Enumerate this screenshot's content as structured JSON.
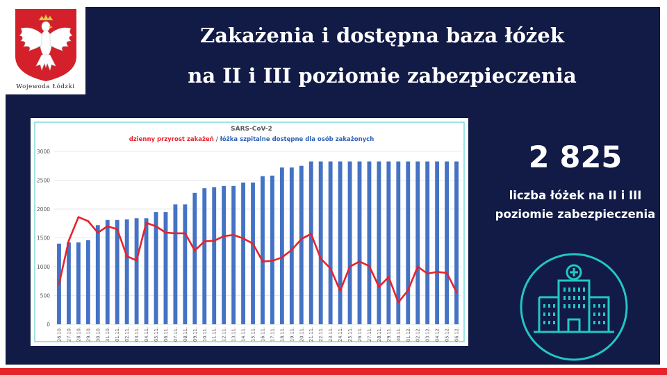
{
  "emblem": {
    "caption": "Wojewoda Łódzki",
    "icon": "polish-eagle-emblem"
  },
  "title": {
    "line1": "Zakażenia i dostępna baza łóżek",
    "line2": "na II i III poziomie zabezpieczenia"
  },
  "stat": {
    "value": "2 825",
    "label": "liczba łóżek na II i III poziomie zabezpieczenia",
    "icon": "hospital-icon",
    "accent": "#22c7c3"
  },
  "colors": {
    "background": "#121a46",
    "bars": "#4472c4",
    "line": "#e5232b",
    "accent_stripe": "#e5232b"
  },
  "chart_data": {
    "type": "bar",
    "title": "SARS-CoV-2",
    "subtitle_red": "dzienny przyrost zakażeń",
    "subtitle_sep": " / ",
    "subtitle_blue": "łóżka szpitalne dostępne dla osób zakażonych",
    "ylim": [
      0,
      3000
    ],
    "yticks": [
      0,
      500,
      1000,
      1500,
      2000,
      2500,
      3000
    ],
    "grid": true,
    "categories": [
      "26.10.",
      "27.10.",
      "28.10.",
      "29.10.",
      "30.10.",
      "31.10.",
      "01.11.",
      "02.11.",
      "03.11.",
      "04.11.",
      "05.11.",
      "06.11.",
      "07.11.",
      "08.11.",
      "09.11.",
      "10.11.",
      "11.11.",
      "12.11.",
      "13.11.",
      "14.11.",
      "15.11.",
      "16.11.",
      "17.11.",
      "18.11.",
      "19.11.",
      "20.11.",
      "21.11.",
      "22.11.",
      "23.11.",
      "24.11.",
      "25.11.",
      "26.11.",
      "27.11.",
      "28.11.",
      "29.11.",
      "30.11.",
      "01.12.",
      "02.12.",
      "03.12.",
      "04.12.",
      "05.12.",
      "06.12."
    ],
    "series": [
      {
        "name": "łóżka szpitalne dostępne dla osób zakażonych",
        "kind": "bar",
        "color": "#4472c4",
        "values": [
          1400,
          1420,
          1420,
          1460,
          1720,
          1810,
          1810,
          1820,
          1840,
          1840,
          1950,
          1950,
          2080,
          2080,
          2280,
          2360,
          2380,
          2400,
          2400,
          2460,
          2460,
          2570,
          2580,
          2720,
          2720,
          2750,
          2825,
          2825,
          2825,
          2825,
          2825,
          2825,
          2825,
          2825,
          2825,
          2825,
          2825,
          2825,
          2825,
          2825,
          2825,
          2825
        ]
      },
      {
        "name": "dzienny przyrost zakażeń",
        "kind": "line",
        "color": "#e5232b",
        "values": [
          700,
          1450,
          1860,
          1790,
          1590,
          1700,
          1650,
          1180,
          1110,
          1760,
          1700,
          1590,
          1580,
          1580,
          1280,
          1440,
          1450,
          1530,
          1550,
          1490,
          1400,
          1090,
          1100,
          1160,
          1290,
          1480,
          1570,
          1140,
          970,
          580,
          1000,
          1090,
          1010,
          650,
          820,
          380,
          590,
          1000,
          880,
          910,
          890,
          560
        ]
      }
    ]
  }
}
